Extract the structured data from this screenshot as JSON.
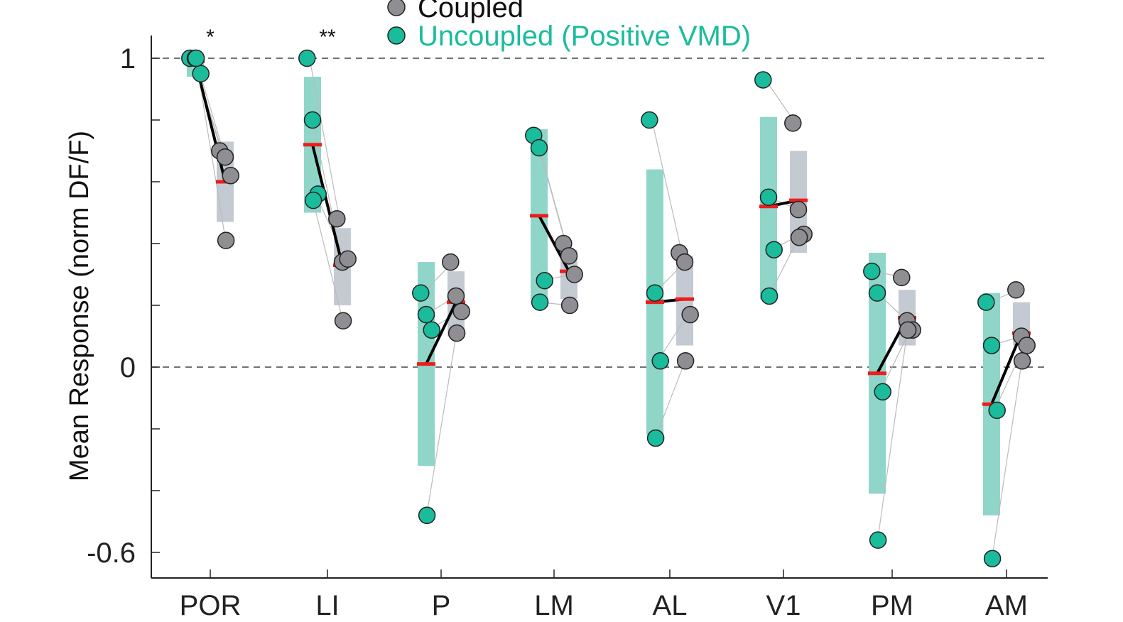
{
  "chart_data": {
    "type": "scatter",
    "ylabel": "Mean Response (norm DF/F)",
    "yticks": [
      1,
      0,
      -0.6
    ],
    "ylim": [
      -0.68,
      1.07
    ],
    "reference_lines": [
      1,
      0
    ],
    "categories": [
      "POR",
      "LI",
      "P",
      "LM",
      "AL",
      "V1",
      "PM",
      "AM"
    ],
    "significance": [
      "*",
      "**",
      "",
      "",
      "",
      "",
      "",
      ""
    ],
    "colors": {
      "uncoupled": "#1abc9c",
      "uncoupled_bar": "#8fd6c9",
      "coupled": "#8e8e93",
      "coupled_bar": "#c4cad2",
      "mean_marker": "#ee1c1c",
      "mean_line": "#000000",
      "pair_line": "#bbbbbb"
    },
    "series": [
      {
        "name": "Uncoupled (Positive VMD)",
        "color": "#1abc9c",
        "means": [
          0.99,
          0.72,
          0.01,
          0.49,
          0.21,
          0.52,
          -0.02,
          -0.12
        ],
        "ranges": [
          [
            0.94,
            1.0
          ],
          [
            0.5,
            0.94
          ],
          [
            -0.32,
            0.34
          ],
          [
            0.22,
            0.77
          ],
          [
            -0.22,
            0.64
          ],
          [
            0.22,
            0.81
          ],
          [
            -0.41,
            0.37
          ],
          [
            -0.48,
            0.24
          ]
        ],
        "points": [
          [
            1.0,
            1.0,
            0.95,
            1.0
          ],
          [
            1.0,
            0.8,
            0.56,
            0.54
          ],
          [
            0.24,
            0.17,
            0.12,
            -0.48
          ],
          [
            0.75,
            0.71,
            0.28,
            0.21
          ],
          [
            0.8,
            0.24,
            0.02,
            -0.23
          ],
          [
            0.93,
            0.55,
            0.38,
            0.23
          ],
          [
            0.31,
            0.24,
            -0.08,
            -0.56
          ],
          [
            0.21,
            0.07,
            -0.14,
            -0.62
          ]
        ]
      },
      {
        "name": "Coupled",
        "color": "#8e8e93",
        "means": [
          0.6,
          0.33,
          0.21,
          0.31,
          0.22,
          0.54,
          0.16,
          0.11
        ],
        "ranges": [
          [
            0.47,
            0.73
          ],
          [
            0.2,
            0.45
          ],
          [
            0.1,
            0.31
          ],
          [
            0.22,
            0.38
          ],
          [
            0.07,
            0.36
          ],
          [
            0.37,
            0.7
          ],
          [
            0.07,
            0.25
          ],
          [
            0.07,
            0.21
          ]
        ],
        "points": [
          [
            0.7,
            0.68,
            0.62,
            0.41
          ],
          [
            0.48,
            0.34,
            0.35,
            0.15
          ],
          [
            0.34,
            0.23,
            0.18,
            0.11
          ],
          [
            0.4,
            0.36,
            0.3,
            0.2
          ],
          [
            0.37,
            0.34,
            0.17,
            0.02
          ],
          [
            0.79,
            0.51,
            0.43,
            0.42
          ],
          [
            0.29,
            0.15,
            0.12,
            0.12
          ],
          [
            0.25,
            0.1,
            0.07,
            0.02
          ]
        ]
      }
    ],
    "legend": {
      "placement": "top-center",
      "entries": [
        "Coupled",
        "Uncoupled (Positive VMD)"
      ]
    }
  }
}
